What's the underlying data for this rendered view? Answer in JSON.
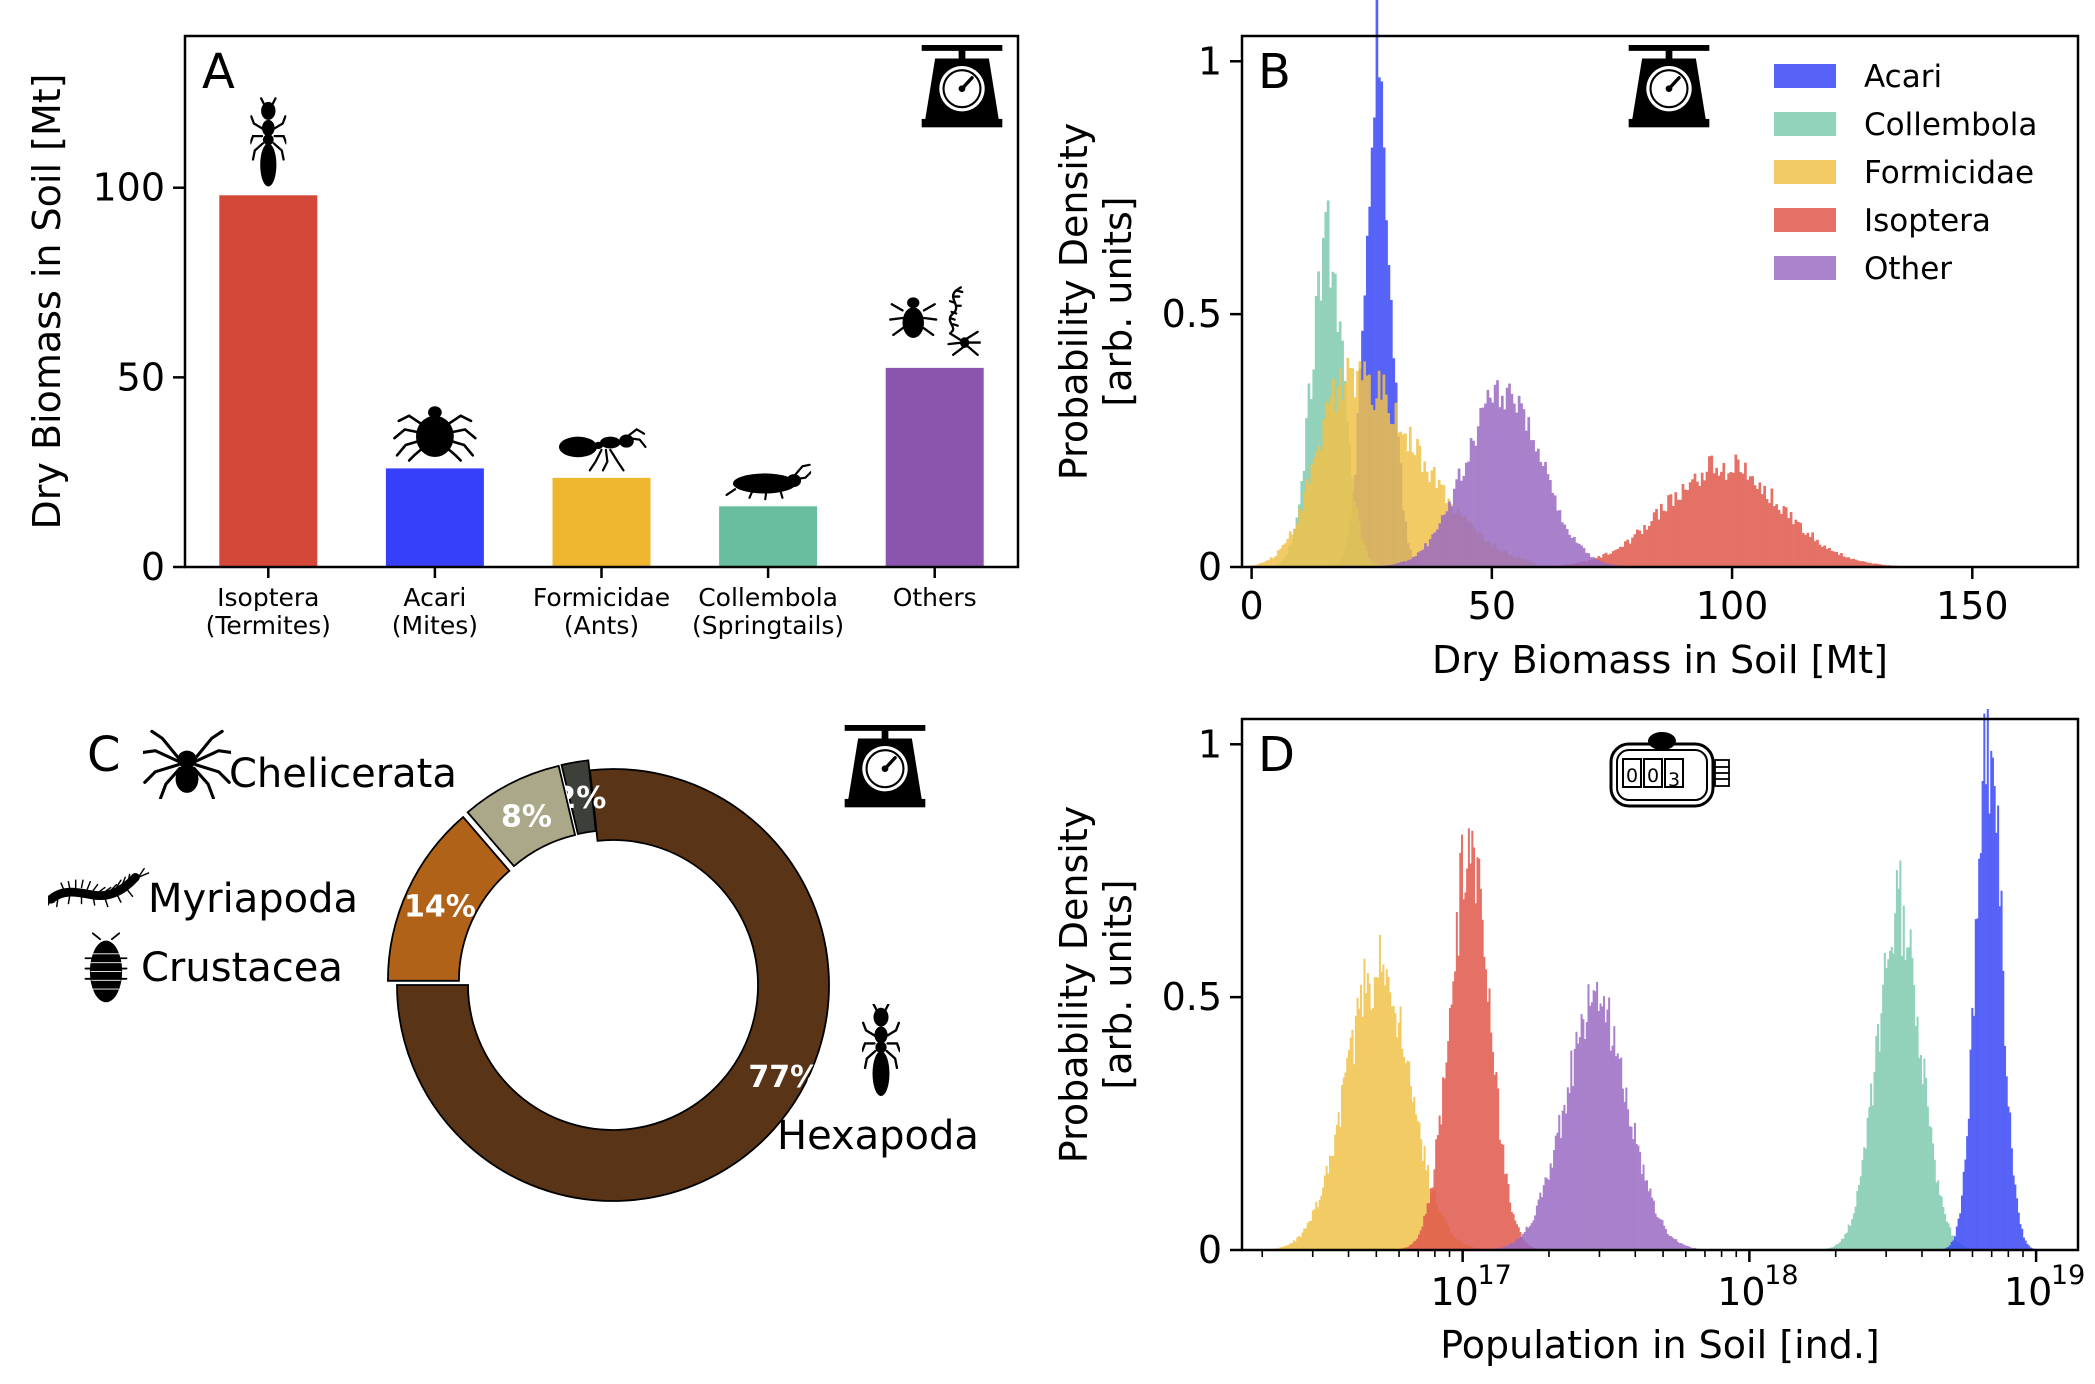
{
  "figure": {
    "panel_letters": [
      "A",
      "B",
      "C",
      "D"
    ]
  },
  "chart_data": [
    {
      "panel": "A",
      "type": "bar",
      "ylabel": "Dry Biomass in Soil [Mt]",
      "ylim": [
        0,
        140
      ],
      "yticks": [
        0,
        50,
        100
      ],
      "categories": [
        {
          "line1": "Isoptera",
          "line2": "(Termites)"
        },
        {
          "line1": "Acari",
          "line2": "(Mites)"
        },
        {
          "line1": "Formicidae",
          "line2": "(Ants)"
        },
        {
          "line1": "Collembola",
          "line2": "(Springtails)"
        },
        {
          "line1": "Others",
          "line2": ""
        }
      ],
      "values": [
        98,
        26,
        23.5,
        16,
        52.5
      ],
      "colors": [
        "#d44839",
        "#3640fb",
        "#efb62f",
        "#6abea0",
        "#8b55ad"
      ],
      "icons": [
        "termite-icon",
        "mite-icon",
        "ant-icon",
        "springtail-icon",
        "beetle-centipede-spider-icon"
      ],
      "corner_icon": "scale-icon",
      "grid": false
    },
    {
      "panel": "B",
      "type": "area",
      "xlabel": "Dry Biomass in Soil [Mt]",
      "ylabel_line1": "Probability Density",
      "ylabel_line2": "[arb. units]",
      "xlim": [
        -2,
        172
      ],
      "ylim": [
        0,
        1.05
      ],
      "xticks": [
        0,
        50,
        100,
        150
      ],
      "yticks": [
        0,
        0.5,
        1
      ],
      "legend_position": "upper right",
      "corner_icon": "scale-icon",
      "series": [
        {
          "name": "Acari",
          "color": "#3a48f5",
          "mean": 26,
          "sd": 2.6,
          "peak": 1.0,
          "skew": 0
        },
        {
          "name": "Collembola",
          "color": "#7fcbb0",
          "mean": 15.5,
          "sd": 3.3,
          "peak": 0.64,
          "skew": 0
        },
        {
          "name": "Formicidae",
          "color": "#f0c24a",
          "mean": 20,
          "sd": 6.5,
          "peak": 0.38,
          "skew": 1.2
        },
        {
          "name": "Isoptera",
          "color": "#e0584c",
          "mean": 98,
          "sd": 12,
          "peak": 0.2,
          "skew": 0
        },
        {
          "name": "Other",
          "color": "#9b6bc2",
          "mean": 52,
          "sd": 7.8,
          "peak": 0.35,
          "skew": 0
        }
      ]
    },
    {
      "panel": "C",
      "type": "pie",
      "style": "donut",
      "corner_icon": "scale-icon",
      "slices": [
        {
          "label": "Hexapoda",
          "percent_label": "77%",
          "value": 76.7,
          "color": "#5a3417",
          "icon": "termite-icon"
        },
        {
          "label": "Crustacea",
          "percent_label": "2%",
          "value": 2.0,
          "color": "#3c4038",
          "icon": "woodlouse-icon"
        },
        {
          "label": "Myriapoda",
          "percent_label": "8%",
          "value": 7.6,
          "color": "#aba88a",
          "icon": "millipede-icon"
        },
        {
          "label": "Chelicerata",
          "percent_label": "14%",
          "value": 13.7,
          "color": "#b06318",
          "icon": "spider-icon"
        }
      ]
    },
    {
      "panel": "D",
      "type": "area",
      "xscale": "log",
      "xlabel": "Population in Soil [ind.]",
      "ylabel_line1": "Probability Density",
      "ylabel_line2": "[arb. units]",
      "xlim": [
        1.7e+16,
        1.4e+19
      ],
      "ylim": [
        0,
        1.05
      ],
      "xticks": [
        {
          "base": "10",
          "exp": "17",
          "value": 1e+17
        },
        {
          "base": "10",
          "exp": "18",
          "value": 1e+18
        },
        {
          "base": "10",
          "exp": "19",
          "value": 1e+19
        }
      ],
      "yticks": [
        0,
        0.5,
        1
      ],
      "corner_icon": "counter-icon",
      "counter_digits": [
        "0",
        "0",
        "3"
      ],
      "series": [
        {
          "name": "Formicidae",
          "color": "#f0c24a",
          "center": 5e+16,
          "sd_log10": 0.11,
          "peak": 0.56
        },
        {
          "name": "Isoptera",
          "color": "#e0584c",
          "center": 1.05e+17,
          "sd_log10": 0.07,
          "peak": 0.78
        },
        {
          "name": "Other",
          "color": "#9b6bc2",
          "center": 2.9e+17,
          "sd_log10": 0.11,
          "peak": 0.48
        },
        {
          "name": "Collembola",
          "color": "#7fcbb0",
          "center": 3.3e+18,
          "sd_log10": 0.075,
          "peak": 0.68
        },
        {
          "name": "Acari",
          "color": "#3a48f5",
          "center": 6.8e+18,
          "sd_log10": 0.045,
          "peak": 1.0
        }
      ]
    }
  ]
}
